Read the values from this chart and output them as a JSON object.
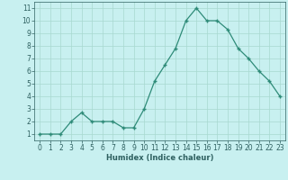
{
  "x": [
    0,
    1,
    2,
    3,
    4,
    5,
    6,
    7,
    8,
    9,
    10,
    11,
    12,
    13,
    14,
    15,
    16,
    17,
    18,
    19,
    20,
    21,
    22,
    23
  ],
  "y": [
    1,
    1,
    1,
    2,
    2.7,
    2,
    2,
    2,
    1.5,
    1.5,
    3,
    5.2,
    6.5,
    7.8,
    10,
    11,
    10,
    10,
    9.3,
    7.8,
    7,
    6,
    5.2,
    4
  ],
  "line_color": "#2e8b78",
  "marker": "+",
  "marker_size": 3,
  "bg_color": "#c8f0f0",
  "grid_color": "#a8d8d0",
  "xlabel": "Humidex (Indice chaleur)",
  "ylim": [
    0.5,
    11.5
  ],
  "xlim": [
    -0.5,
    23.5
  ],
  "yticks": [
    1,
    2,
    3,
    4,
    5,
    6,
    7,
    8,
    9,
    10,
    11
  ],
  "xticks": [
    0,
    1,
    2,
    3,
    4,
    5,
    6,
    7,
    8,
    9,
    10,
    11,
    12,
    13,
    14,
    15,
    16,
    17,
    18,
    19,
    20,
    21,
    22,
    23
  ],
  "font_color": "#2e6060",
  "xlabel_fontsize": 6.0,
  "tick_fontsize": 5.5
}
